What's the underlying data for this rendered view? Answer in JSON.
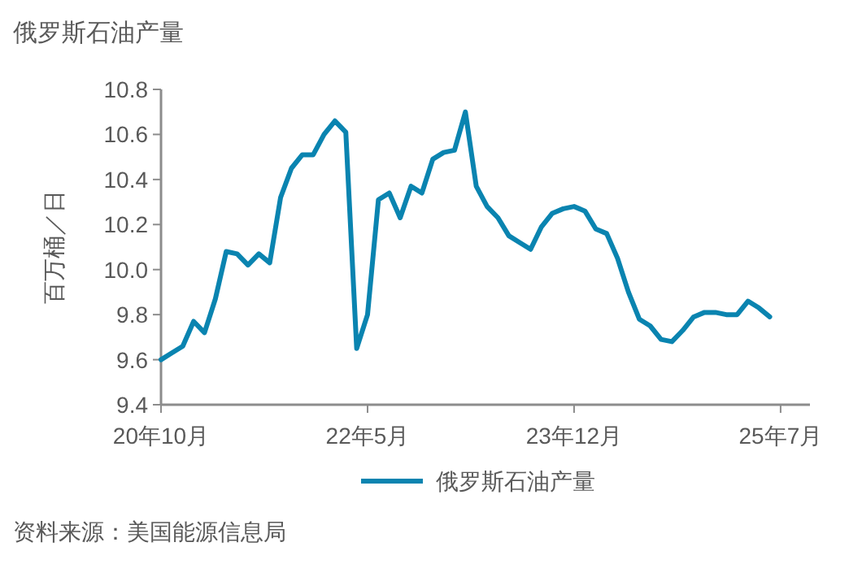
{
  "chart_data": {
    "type": "line",
    "title": "俄罗斯石油产量",
    "ylabel": "百万桶／日",
    "categories": [
      "20年10月",
      null,
      null,
      null,
      null,
      null,
      null,
      null,
      null,
      null,
      null,
      null,
      null,
      null,
      null,
      null,
      null,
      null,
      null,
      "22年5月",
      null,
      null,
      null,
      null,
      null,
      null,
      null,
      null,
      null,
      null,
      null,
      null,
      null,
      null,
      null,
      null,
      null,
      null,
      "23年12月",
      null,
      null,
      null,
      null,
      null,
      null,
      null,
      null,
      null,
      null,
      null,
      null,
      null,
      null,
      null,
      null,
      null,
      null,
      "25年7月"
    ],
    "series": [
      {
        "name": "俄罗斯石油产量",
        "color": "#0a84b0",
        "values": [
          9.6,
          9.63,
          9.66,
          9.77,
          9.72,
          9.87,
          10.08,
          10.07,
          10.02,
          10.07,
          10.03,
          10.32,
          10.45,
          10.51,
          10.51,
          10.6,
          10.66,
          10.61,
          9.65,
          9.8,
          10.31,
          10.34,
          10.23,
          10.37,
          10.34,
          10.49,
          10.52,
          10.53,
          10.7,
          10.37,
          10.28,
          10.23,
          10.15,
          10.12,
          10.09,
          10.19,
          10.25,
          10.27,
          10.28,
          10.26,
          10.18,
          10.16,
          10.05,
          9.9,
          9.78,
          9.75,
          9.69,
          9.68,
          9.73,
          9.79,
          9.81,
          9.81,
          9.8,
          9.8,
          9.86,
          9.83,
          9.79,
          null
        ]
      }
    ],
    "ylim": [
      9.4,
      10.8
    ],
    "yticks": [
      9.4,
      9.6,
      9.8,
      {
        "value": 10,
        "label": "10.0"
      },
      10.2,
      10.4,
      10.6,
      10.8
    ],
    "grid": false,
    "legend": "bottom",
    "marker": "none",
    "line_style": "solid",
    "annotations": [
      "资料来源：美国能源信息局"
    ]
  }
}
